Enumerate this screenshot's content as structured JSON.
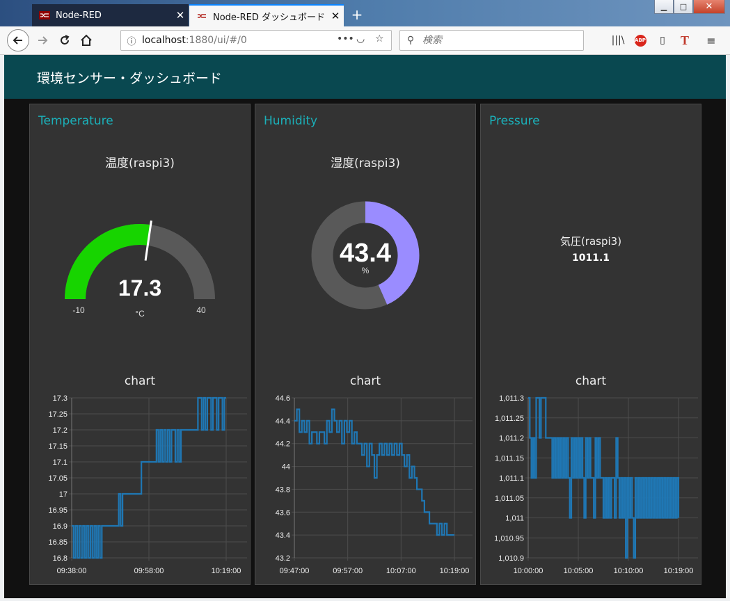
{
  "browser": {
    "tabs": [
      {
        "label": "Node-RED"
      },
      {
        "label": "Node-RED ダッシュボード"
      }
    ],
    "url_host": "localhost",
    "url_path": ":1880/ui/#/0",
    "search_placeholder": "検索"
  },
  "dashboard": {
    "title": "環境センサー・ダッシュボード",
    "accent_color": "#1bb0b9",
    "header_color": "#094850",
    "groups": [
      {
        "title": "Temperature",
        "gauge": {
          "label": "温度(raspi3)",
          "value": "17.3",
          "units": "°C",
          "min": "-10",
          "max": "40",
          "fill_color": "#17d400"
        },
        "chart_label": "chart"
      },
      {
        "title": "Humidity",
        "donut": {
          "label": "湿度(raspi3)",
          "value": "43.4",
          "units": "%",
          "fill_color": "#9a8cff"
        },
        "chart_label": "chart"
      },
      {
        "title": "Pressure",
        "text": {
          "label": "気圧(raspi3)",
          "value": "1011.1"
        },
        "chart_label": "chart"
      }
    ]
  },
  "chart_data": [
    {
      "type": "line",
      "title": "chart",
      "yticks": [
        "17.3",
        "17.25",
        "17.2",
        "17.15",
        "17.1",
        "17.05",
        "17",
        "16.95",
        "16.9",
        "16.85",
        "16.8"
      ],
      "ylim": [
        16.8,
        17.3
      ],
      "xticks": [
        "09:38:00",
        "09:58:00",
        "10:19:00"
      ],
      "series": [
        {
          "color": "#1f77b4",
          "x_minutes": [
            0,
            0.5,
            1,
            1.5,
            2,
            2.5,
            3,
            3.5,
            4,
            4.5,
            5,
            5.5,
            6,
            6.5,
            7,
            7.5,
            8,
            8.5,
            9,
            9.5,
            10,
            10.5,
            11,
            11.5,
            12,
            12.5,
            13,
            13.5,
            14,
            14.5,
            15,
            15.5,
            16,
            16.5,
            17,
            17.5,
            18,
            18.5,
            19,
            19.5,
            20,
            20.5,
            21,
            21.5,
            22,
            22.5,
            23,
            23.5,
            24,
            24.5,
            25,
            25.5,
            26,
            26.5,
            27,
            27.5,
            28,
            28.5,
            29,
            29.5,
            30,
            30.5,
            31,
            31.5,
            32,
            32.5,
            33,
            33.5,
            34,
            34.5,
            35,
            35.5,
            36,
            36.5,
            37,
            37.5,
            38,
            38.5,
            39,
            39.5,
            40,
            40.5,
            41
          ],
          "values": [
            16.9,
            16.8,
            16.9,
            16.8,
            16.9,
            16.8,
            16.9,
            16.8,
            16.9,
            16.8,
            16.9,
            16.8,
            16.9,
            16.8,
            16.9,
            16.8,
            16.9,
            16.9,
            16.9,
            16.9,
            16.9,
            16.9,
            16.9,
            16.9,
            16.9,
            17.0,
            16.9,
            17.0,
            17.0,
            17.0,
            17.0,
            17.0,
            17.0,
            17.0,
            17.0,
            17.0,
            17.0,
            17.1,
            17.1,
            17.1,
            17.1,
            17.1,
            17.1,
            17.1,
            17.1,
            17.2,
            17.1,
            17.2,
            17.1,
            17.2,
            17.1,
            17.2,
            17.1,
            17.2,
            17.2,
            17.1,
            17.2,
            17.1,
            17.2,
            17.2,
            17.2,
            17.2,
            17.2,
            17.2,
            17.2,
            17.2,
            17.2,
            17.3,
            17.3,
            17.2,
            17.3,
            17.2,
            17.3,
            17.3,
            17.2,
            17.3,
            17.3,
            17.2,
            17.3,
            17.3,
            17.2,
            17.3,
            17.3
          ]
        }
      ]
    },
    {
      "type": "line",
      "title": "chart",
      "yticks": [
        "44.6",
        "44.4",
        "44.2",
        "44",
        "43.8",
        "43.6",
        "43.4",
        "43.2"
      ],
      "ylim": [
        43.2,
        44.6
      ],
      "xticks": [
        "09:47:00",
        "09:57:00",
        "10:07:00",
        "10:19:00"
      ],
      "series": [
        {
          "color": "#1f77b4",
          "x_minutes": [
            0,
            0.5,
            1,
            1.5,
            2,
            2.5,
            3,
            3.5,
            4,
            4.5,
            5,
            5.5,
            6,
            6.5,
            7,
            7.5,
            8,
            8.5,
            9,
            9.5,
            10,
            10.5,
            11,
            11.5,
            12,
            12.5,
            13,
            13.5,
            14,
            14.5,
            15,
            15.5,
            16,
            16.5,
            17,
            17.5,
            18,
            18.5,
            19,
            19.5,
            20,
            20.5,
            21,
            21.5,
            22,
            22.5,
            23,
            23.5,
            24,
            24.5,
            25,
            25.5,
            26,
            26.5,
            27,
            27.5,
            28,
            28.5,
            29,
            29.5,
            30,
            30.5,
            31,
            31.5,
            32
          ],
          "values": [
            44.4,
            44.5,
            44.3,
            44.4,
            44.3,
            44.4,
            44.2,
            44.3,
            44.3,
            44.2,
            44.3,
            44.3,
            44.2,
            44.4,
            44.3,
            44.5,
            44.4,
            44.3,
            44.4,
            44.2,
            44.4,
            44.3,
            44.4,
            44.2,
            44.3,
            44.2,
            44.2,
            44.1,
            44.2,
            44.0,
            44.2,
            44.1,
            43.9,
            44.1,
            44.2,
            44.1,
            44.2,
            44.1,
            44.2,
            44.1,
            44.2,
            44.1,
            44.2,
            44.1,
            44.0,
            44.1,
            43.9,
            44.0,
            43.9,
            43.8,
            43.8,
            43.7,
            43.6,
            43.6,
            43.5,
            43.5,
            43.5,
            43.4,
            43.5,
            43.4,
            43.5,
            43.4,
            43.4,
            43.4,
            43.4
          ]
        }
      ]
    },
    {
      "type": "line",
      "title": "chart",
      "yticks": [
        "1,011.3",
        "1,011.25",
        "1,011.2",
        "1,011.15",
        "1,011.1",
        "1,011.05",
        "1,011",
        "1,010.95",
        "1,010.9"
      ],
      "ylim": [
        1010.9,
        1011.3
      ],
      "xticks": [
        "10:00:00",
        "10:05:00",
        "10:10:00",
        "10:19:00"
      ],
      "series": [
        {
          "color": "#1f77b4",
          "x_minutes": [
            0,
            0.2,
            0.4,
            0.6,
            0.8,
            1,
            1.2,
            1.4,
            1.6,
            1.8,
            2,
            2.2,
            2.4,
            2.6,
            2.8,
            3,
            3.2,
            3.4,
            3.6,
            3.8,
            4,
            4.2,
            4.4,
            4.6,
            4.8,
            5,
            5.2,
            5.4,
            5.6,
            5.8,
            6,
            6.2,
            6.4,
            6.6,
            6.8,
            7,
            7.2,
            7.4,
            7.6,
            7.8,
            8,
            8.2,
            8.4,
            8.6,
            8.8,
            9,
            9.2,
            9.4,
            9.6,
            9.8,
            10,
            10.2,
            10.4,
            10.6,
            10.8,
            11,
            11.2,
            11.4,
            11.6,
            11.8,
            12,
            12.2,
            12.4,
            12.6,
            12.8,
            13,
            13.2,
            13.4,
            13.6,
            13.8,
            14,
            14.2,
            14.4,
            14.6,
            14.8,
            15,
            15.2,
            15.4,
            15.6,
            15.8,
            16,
            16.2,
            16.4,
            16.6,
            16.8,
            17,
            17.2,
            17.4,
            17.6,
            17.8,
            18,
            18.2,
            18.4,
            18.6,
            18.8
          ],
          "values": [
            1011.3,
            1011.2,
            1011.1,
            1011.2,
            1011.1,
            1011.3,
            1011.3,
            1011.2,
            1011.3,
            1011.3,
            1011.3,
            1011.2,
            1011.2,
            1011.2,
            1011.2,
            1011.1,
            1011.2,
            1011.1,
            1011.2,
            1011.1,
            1011.2,
            1011.1,
            1011.2,
            1011.1,
            1011.2,
            1011.1,
            1011.0,
            1011.2,
            1011.1,
            1011.2,
            1011.1,
            1011.2,
            1011.1,
            1011.2,
            1011.1,
            1011.0,
            1011.2,
            1011.1,
            1011.2,
            1011.1,
            1011.1,
            1011.0,
            1011.2,
            1011.1,
            1011.2,
            1011.1,
            1011.1,
            1011.0,
            1011.1,
            1011.0,
            1011.1,
            1011.0,
            1011.1,
            1011.1,
            1011.0,
            1011.2,
            1011.1,
            1011.0,
            1011.1,
            1011.0,
            1011.1,
            1010.9,
            1011.1,
            1011.0,
            1011.1,
            1011.0,
            1010.9,
            1011.1,
            1011.0,
            1011.1,
            1011.0,
            1011.1,
            1011.0,
            1011.1,
            1011.0,
            1011.1,
            1011.0,
            1011.1,
            1011.0,
            1011.1,
            1011.0,
            1011.1,
            1011.0,
            1011.1,
            1011.0,
            1011.1,
            1011.0,
            1011.1,
            1011.0,
            1011.1,
            1011.0,
            1011.1,
            1011.0,
            1011.1,
            1011.0
          ]
        }
      ]
    }
  ]
}
